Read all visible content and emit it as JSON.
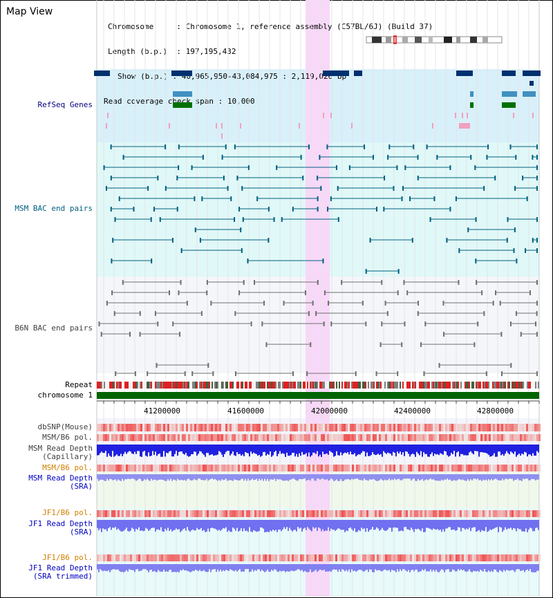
{
  "header": {
    "view_title": "Map View",
    "chromosome_label": "Chromosome",
    "chromosome_value": "Chromosome 1, reference assembly (C57BL/6J) (Build 37)",
    "length_label": "Length (b.p.)",
    "length_value": "197,195,432",
    "show_label": "Show (b.p.)",
    "show_value": "40,965,950-43,084,975 : 2,119,026 bp",
    "coverage_label": "Read coverage check span",
    "coverage_value": "10,000"
  },
  "tracks": {
    "refseq": "RefSeq Genes",
    "msm_bac": "MSM BAC end pairs",
    "b6n_bac": "B6N BAC end pairs",
    "repeat": "Repeat",
    "chromosome": "chromosome 1",
    "dbsnp": "dbSNP(Mouse)",
    "msm_b6_pol_1": "MSM/B6 pol.",
    "msm_read_depth_cap_1": "MSM Read Depth",
    "msm_read_depth_cap_2": "(Capillary)",
    "msm_b6_pol_2": "MSM/B6 pol.",
    "msm_read_depth_sra_1": "MSM Read Depth",
    "msm_read_depth_sra_2": "(SRA)",
    "jf1_b6_pol_1": "JF1/B6 pol.",
    "jf1_read_depth_sra_1": "JF1 Read Depth",
    "jf1_read_depth_sra_2": "(SRA)",
    "jf1_b6_pol_2": "JF1/B6 pol.",
    "jf1_read_depth_trim_1": "JF1 Read Depth",
    "jf1_read_depth_trim_2": "(SRA trimmed)"
  },
  "axis": {
    "ticks": [
      "41200000",
      "41600000",
      "42000000",
      "42400000",
      "42800000"
    ]
  },
  "colors": {
    "refseq_bg": "#d8f0fa",
    "msm_bg": "#e0f8f8",
    "b6n_bg": "#f4f6fa",
    "highlight": "#f8d8f8",
    "chromosome": "#006400",
    "gene_dark": "#003070",
    "gene_mid": "#4090c0",
    "gene_green": "#007000",
    "msm_line": "#006080",
    "b6n_line": "#707070"
  }
}
